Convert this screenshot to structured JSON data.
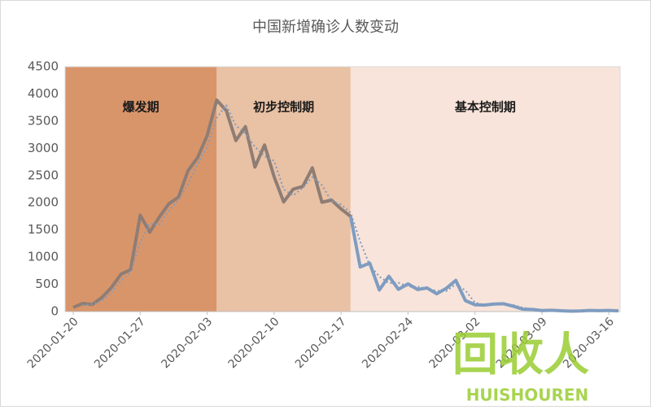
{
  "chart_data": {
    "type": "line",
    "title": "中国新增确诊人数变动",
    "categories": [
      "2020-01-20",
      null,
      null,
      null,
      null,
      null,
      null,
      "2020-01-27",
      null,
      null,
      null,
      null,
      null,
      null,
      "2020-02-03",
      null,
      null,
      null,
      null,
      null,
      null,
      "2020-02-10",
      null,
      null,
      null,
      null,
      null,
      null,
      "2020-02-17",
      null,
      null,
      null,
      null,
      null,
      null,
      "2020-02-24",
      null,
      null,
      null,
      null,
      null,
      null,
      "2020-03-02",
      null,
      null,
      null,
      null,
      null,
      null,
      "2020-03-09",
      null,
      null,
      null,
      null,
      null,
      null,
      "2020-03-16",
      null
    ],
    "series": [
      {
        "color": "#8e7d74",
        "style": "solid",
        "values": [
          77,
          149,
          131,
          259,
          444,
          688,
          769,
          1771,
          1459,
          1737,
          1982,
          2102,
          2590,
          2829,
          3235,
          3887,
          3694,
          3143,
          3399,
          2656,
          3062,
          2478,
          2015,
          2250,
          2300,
          2641,
          2009,
          2048,
          1886,
          1749,
          null,
          null,
          null,
          null,
          null,
          null,
          null,
          null,
          null,
          null,
          null,
          null,
          null,
          null,
          null,
          null,
          null,
          null,
          null,
          null,
          null,
          null,
          null,
          null,
          null,
          null,
          null,
          null
        ]
      },
      {
        "color": "#7f9cc0",
        "style": "solid",
        "values": [
          null,
          null,
          null,
          null,
          null,
          null,
          null,
          null,
          null,
          null,
          null,
          null,
          null,
          null,
          null,
          null,
          null,
          null,
          null,
          null,
          null,
          null,
          null,
          null,
          null,
          null,
          null,
          null,
          null,
          1749,
          820,
          889,
          397,
          648,
          409,
          508,
          406,
          433,
          327,
          427,
          573,
          202,
          125,
          119,
          139,
          143,
          99,
          44,
          40,
          19,
          24,
          15,
          8,
          11,
          20,
          16,
          21,
          13
        ]
      },
      {
        "color": "#7f9cc0",
        "style": "dotted",
        "values": [
          null,
          113,
          140,
          195,
          352,
          566,
          729,
          1270,
          1615,
          1598,
          1860,
          2042,
          2346,
          2710,
          3032,
          3561,
          3791,
          3419,
          3271,
          3028,
          2859,
          2770,
          2247,
          2133,
          2275,
          2471,
          2325,
          2029,
          1967,
          1818,
          1285,
          855,
          643,
          523,
          529,
          459,
          457,
          420,
          380,
          377,
          500,
          388,
          164,
          122,
          129,
          141,
          121,
          72,
          42,
          30,
          22,
          20,
          12,
          10,
          16,
          18,
          19,
          17
        ]
      }
    ],
    "regions": [
      {
        "label": "爆发期",
        "start": 0,
        "end": 15,
        "color": "#d9956a"
      },
      {
        "label": "初步控制期",
        "start": 15,
        "end": 29,
        "color": "#e9c1a4"
      },
      {
        "label": "基本控制期",
        "start": 29,
        "end": 57,
        "color": "#f8e4da"
      }
    ],
    "ylim": [
      0,
      4500
    ],
    "yticks": [
      0,
      500,
      1000,
      1500,
      2000,
      2500,
      3000,
      3500,
      4000,
      4500
    ],
    "grid": false,
    "watermark": {
      "logo": "回收人",
      "text": "HUISHOUREN"
    }
  }
}
